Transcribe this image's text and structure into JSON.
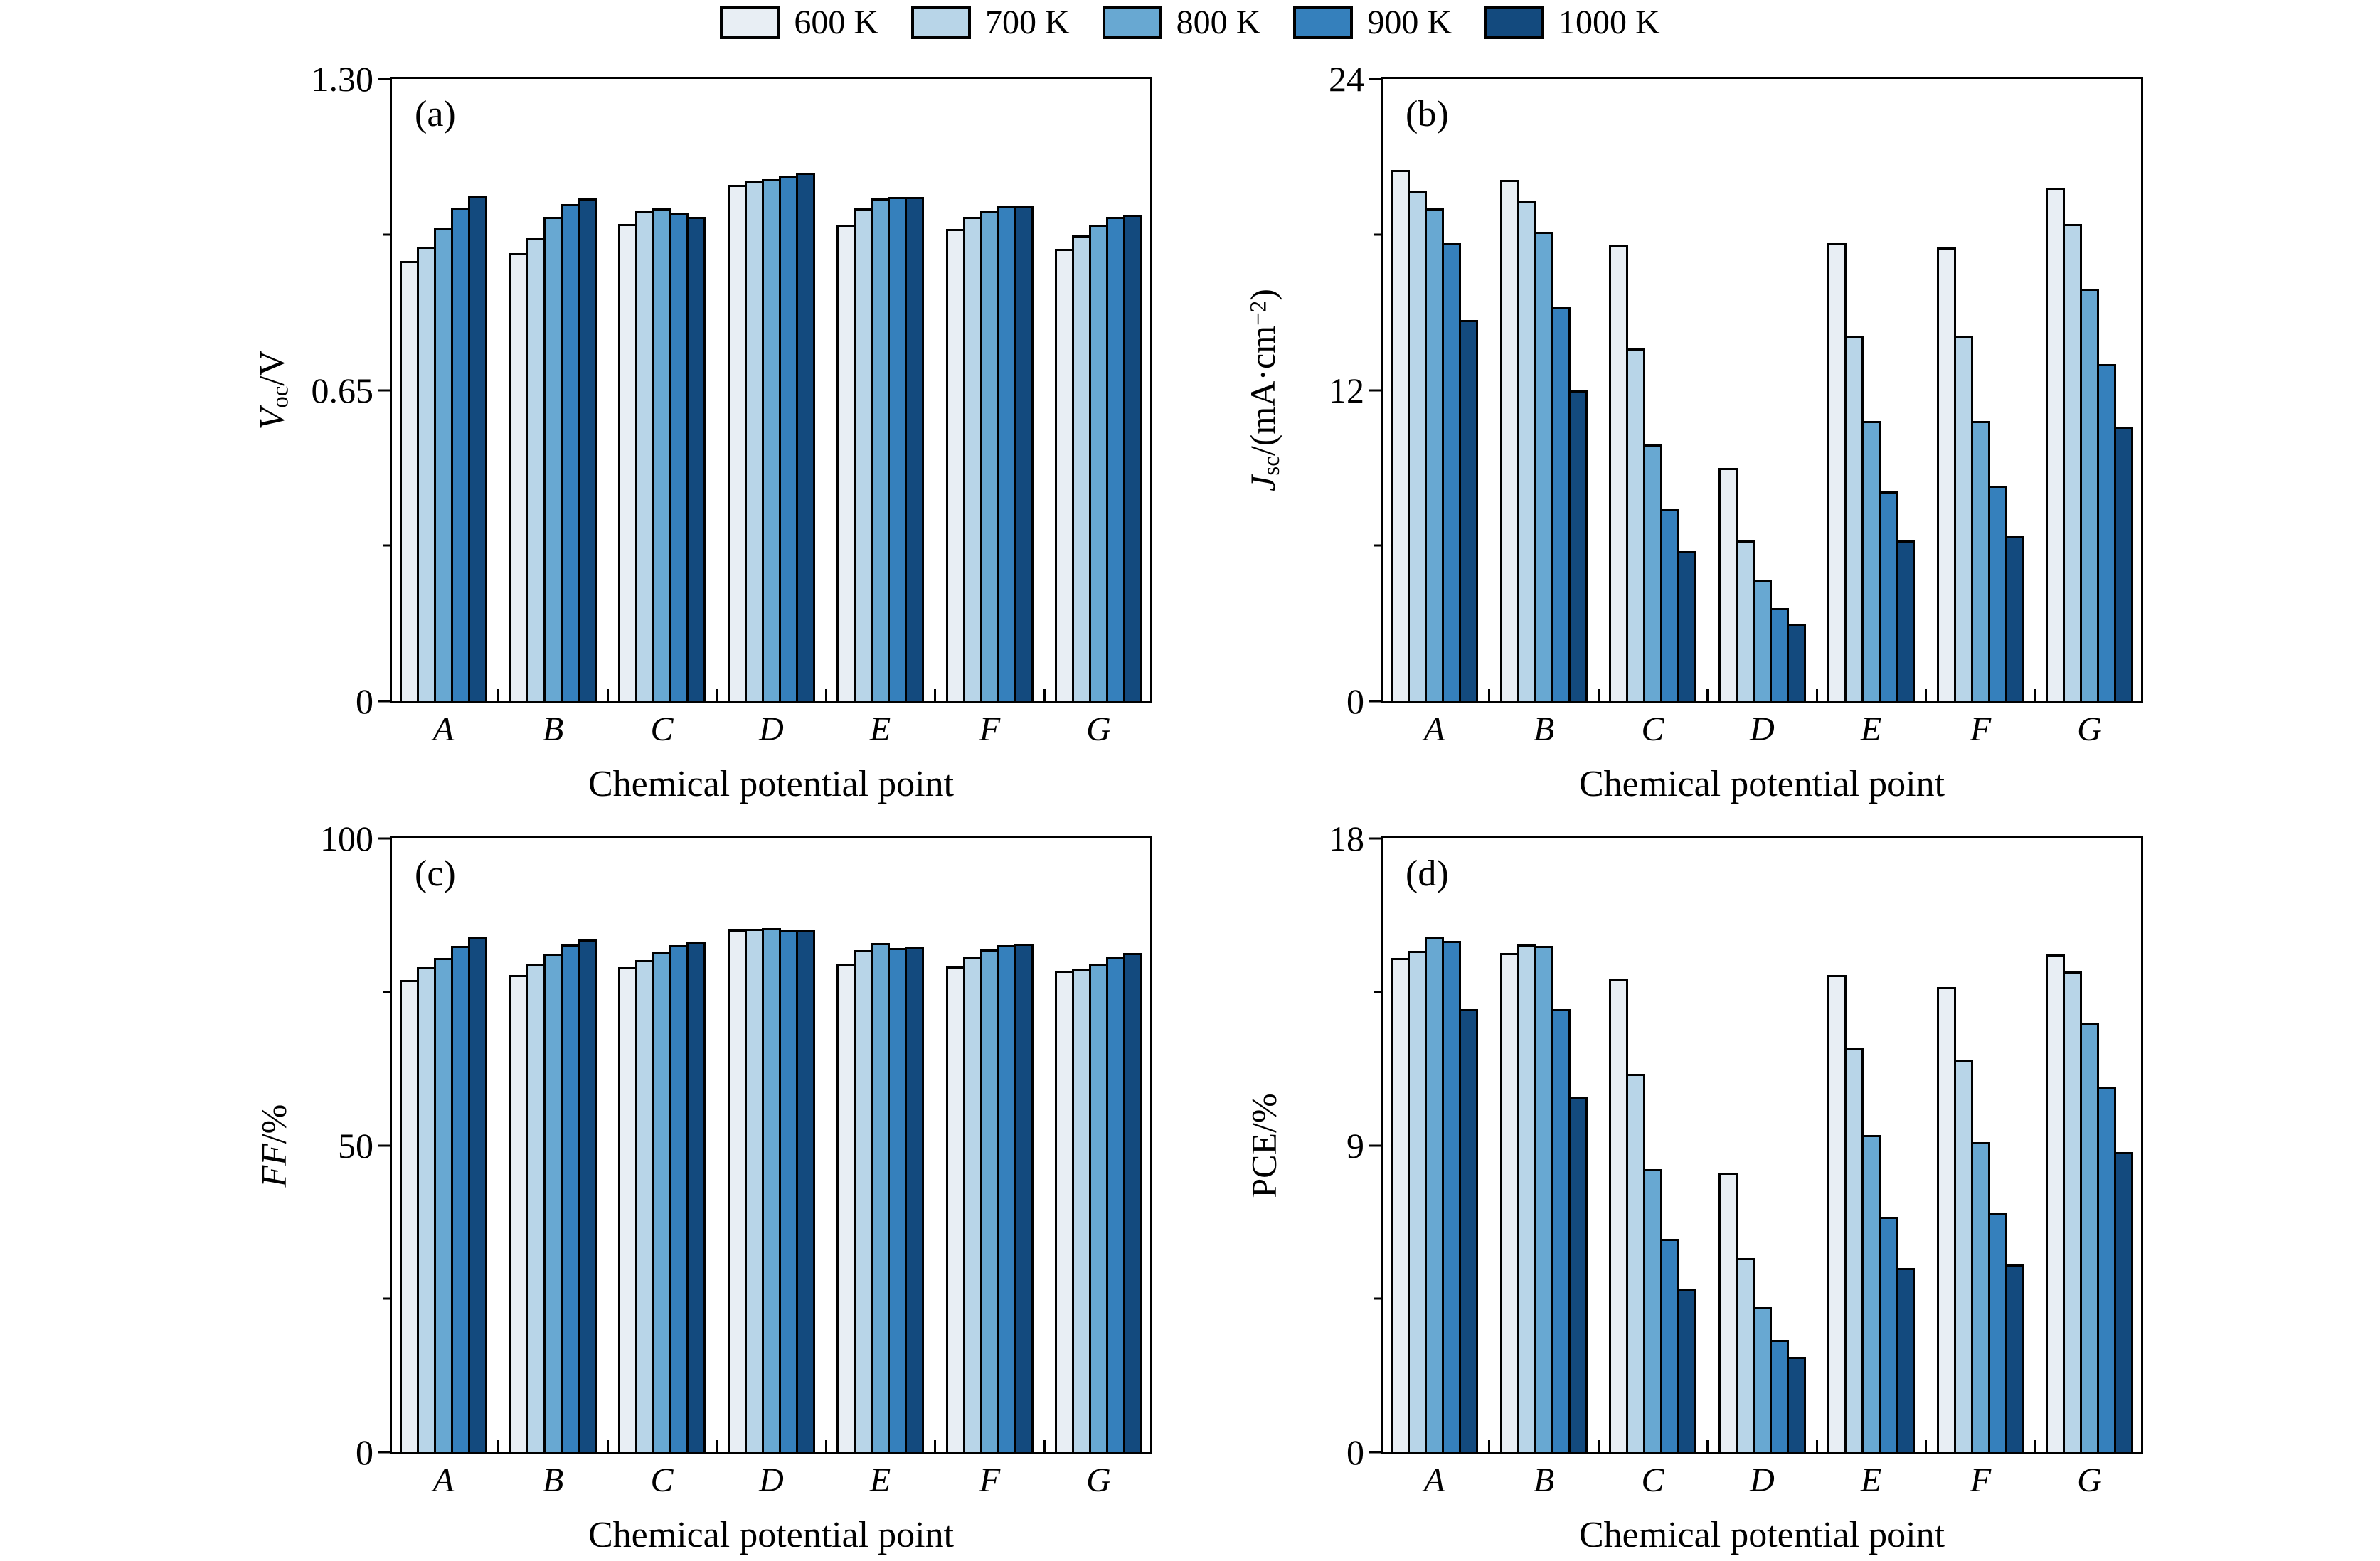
{
  "legend": {
    "items": [
      {
        "label": "600 K",
        "color": "#e8eef4"
      },
      {
        "label": "700 K",
        "color": "#b8d5e8"
      },
      {
        "label": "800 K",
        "color": "#68a8d2"
      },
      {
        "label": "900 K",
        "color": "#3580bc"
      },
      {
        "label": "1000 K",
        "color": "#134a7e"
      }
    ]
  },
  "chart_data": [
    {
      "id": "a",
      "letter": "(a)",
      "type": "bar",
      "xlabel": "Chemical potential point",
      "ylabel_segments": [
        {
          "t": "V",
          "i": true
        },
        {
          "t": "oc",
          "sub": true
        },
        {
          "t": "/V"
        }
      ],
      "ylim": [
        0,
        1.3
      ],
      "yticks": [
        {
          "v": 0,
          "label": "0"
        },
        {
          "v": 0.65,
          "label": "0.65"
        },
        {
          "v": 1.3,
          "label": "1.30"
        }
      ],
      "yticks_minor": [
        0.325,
        0.975
      ],
      "categories": [
        "A",
        "B",
        "C",
        "D",
        "E",
        "F",
        "G"
      ],
      "series": [
        {
          "name": "600 K",
          "values": [
            0.92,
            0.936,
            0.997,
            1.078,
            0.995,
            0.986,
            0.945
          ]
        },
        {
          "name": "700 K",
          "values": [
            0.949,
            0.968,
            1.024,
            1.086,
            1.029,
            1.012,
            0.973
          ]
        },
        {
          "name": "800 K",
          "values": [
            0.988,
            1.012,
            1.03,
            1.092,
            1.05,
            1.024,
            0.995
          ]
        },
        {
          "name": "900 K",
          "values": [
            1.031,
            1.038,
            1.019,
            1.098,
            1.053,
            1.036,
            1.012
          ]
        },
        {
          "name": "1000 K",
          "values": [
            1.055,
            1.05,
            1.012,
            1.104,
            1.053,
            1.034,
            1.016
          ]
        }
      ]
    },
    {
      "id": "b",
      "letter": "(b)",
      "type": "bar",
      "xlabel": "Chemical potential point",
      "ylabel_segments": [
        {
          "t": "J",
          "i": true
        },
        {
          "t": "sc",
          "sub": true
        },
        {
          "t": "/(mA·cm"
        },
        {
          "t": "−2",
          "sup": true
        },
        {
          "t": ")"
        }
      ],
      "ylim": [
        0,
        24
      ],
      "yticks": [
        {
          "v": 0,
          "label": "0"
        },
        {
          "v": 12,
          "label": "12"
        },
        {
          "v": 24,
          "label": "24"
        }
      ],
      "yticks_minor": [
        6,
        18
      ],
      "categories": [
        "A",
        "B",
        "C",
        "D",
        "E",
        "F",
        "G"
      ],
      "series": [
        {
          "name": "600 K",
          "values": [
            20.5,
            20.1,
            17.6,
            9.0,
            17.7,
            17.5,
            19.8
          ]
        },
        {
          "name": "700 K",
          "values": [
            19.7,
            19.3,
            13.6,
            6.2,
            14.1,
            14.1,
            18.4
          ]
        },
        {
          "name": "800 K",
          "values": [
            19.0,
            18.1,
            9.9,
            4.7,
            10.8,
            10.8,
            15.9
          ]
        },
        {
          "name": "900 K",
          "values": [
            17.7,
            15.2,
            7.4,
            3.6,
            8.1,
            8.3,
            13.0
          ]
        },
        {
          "name": "1000 K",
          "values": [
            14.7,
            12.0,
            5.8,
            3.0,
            6.2,
            6.4,
            10.6
          ]
        }
      ]
    },
    {
      "id": "c",
      "letter": "(c)",
      "type": "bar",
      "xlabel": "Chemical potential point",
      "ylabel_segments": [
        {
          "t": "FF",
          "i": true
        },
        {
          "t": "/%"
        }
      ],
      "ylim": [
        0,
        100
      ],
      "yticks": [
        {
          "v": 0,
          "label": "0"
        },
        {
          "v": 50,
          "label": "50"
        },
        {
          "v": 100,
          "label": "100"
        }
      ],
      "yticks_minor": [
        25,
        75
      ],
      "categories": [
        "A",
        "B",
        "C",
        "D",
        "E",
        "F",
        "G"
      ],
      "series": [
        {
          "name": "600 K",
          "values": [
            77.0,
            77.7,
            79.0,
            85.2,
            79.6,
            79.2,
            78.5
          ]
        },
        {
          "name": "700 K",
          "values": [
            79.0,
            79.5,
            80.2,
            85.3,
            81.8,
            80.6,
            78.7
          ]
        },
        {
          "name": "800 K",
          "values": [
            80.5,
            81.2,
            81.6,
            85.4,
            83.0,
            81.9,
            79.5
          ]
        },
        {
          "name": "900 K",
          "values": [
            82.5,
            82.7,
            82.6,
            85.1,
            82.1,
            82.6,
            80.8
          ]
        },
        {
          "name": "1000 K",
          "values": [
            84.0,
            83.5,
            83.1,
            85.0,
            82.3,
            82.9,
            81.3
          ]
        }
      ]
    },
    {
      "id": "d",
      "letter": "(d)",
      "type": "bar",
      "xlabel": "Chemical potential point",
      "ylabel_segments": [
        {
          "t": "PCE/%"
        }
      ],
      "ylim": [
        0,
        18
      ],
      "yticks": [
        {
          "v": 0,
          "label": "0"
        },
        {
          "v": 9,
          "label": "9"
        },
        {
          "v": 18,
          "label": "18"
        }
      ],
      "yticks_minor": [
        4.5,
        13.5
      ],
      "categories": [
        "A",
        "B",
        "C",
        "D",
        "E",
        "F",
        "G"
      ],
      "series": [
        {
          "name": "600 K",
          "values": [
            14.5,
            14.65,
            13.9,
            8.2,
            14.0,
            13.65,
            14.6
          ]
        },
        {
          "name": "700 K",
          "values": [
            14.7,
            14.9,
            11.1,
            5.7,
            11.85,
            11.5,
            14.1
          ]
        },
        {
          "name": "800 K",
          "values": [
            15.1,
            14.85,
            8.3,
            4.25,
            9.3,
            9.1,
            12.6
          ]
        },
        {
          "name": "900 K",
          "values": [
            15.0,
            13.0,
            6.25,
            3.3,
            6.9,
            7.0,
            10.7
          ]
        },
        {
          "name": "1000 K",
          "values": [
            13.0,
            10.4,
            4.8,
            2.8,
            5.4,
            5.5,
            8.8
          ]
        }
      ]
    }
  ]
}
